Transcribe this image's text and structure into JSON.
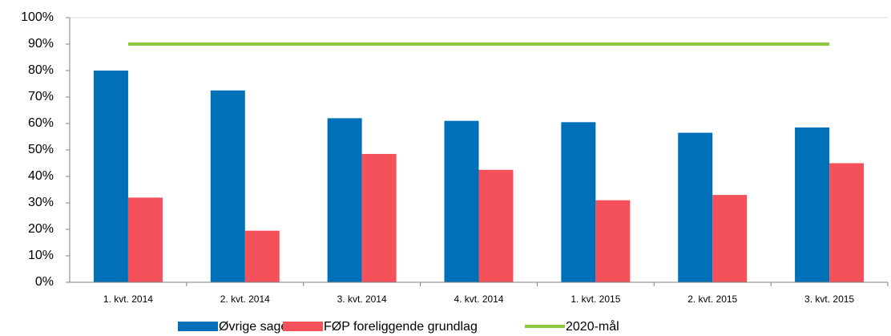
{
  "chart_data": {
    "type": "bar",
    "categories": [
      "1. kvt. 2014",
      "2. kvt. 2014",
      "3. kvt. 2014",
      "4. kvt. 2014",
      "1. kvt. 2015",
      "2. kvt. 2015",
      "3. kvt. 2015"
    ],
    "series": [
      {
        "name": "Øvrige sager",
        "type": "bar",
        "color": "#0070b8",
        "values": [
          80,
          72.5,
          62,
          61,
          60.5,
          56.5,
          58.5
        ]
      },
      {
        "name": "FØP foreliggende grundlag",
        "type": "bar",
        "color": "#f4515a",
        "values": [
          32,
          19.5,
          48.5,
          42.5,
          31,
          33,
          45
        ]
      },
      {
        "name": "2020-mål",
        "type": "line",
        "color": "#8dc63f",
        "values": [
          90,
          90,
          90,
          90,
          90,
          90,
          90
        ]
      }
    ],
    "ylim": [
      0,
      100
    ],
    "yticks": [
      {
        "value": 0,
        "label": "0%"
      },
      {
        "value": 10,
        "label": "10%"
      },
      {
        "value": 20,
        "label": "20%"
      },
      {
        "value": 30,
        "label": "30%"
      },
      {
        "value": 40,
        "label": "40%"
      },
      {
        "value": 50,
        "label": "50%"
      },
      {
        "value": 60,
        "label": "60%"
      },
      {
        "value": 70,
        "label": "70%"
      },
      {
        "value": 80,
        "label": "80%"
      },
      {
        "value": 90,
        "label": "90%"
      },
      {
        "value": 100,
        "label": "100%"
      }
    ],
    "grid": false,
    "legend": "bottom"
  }
}
